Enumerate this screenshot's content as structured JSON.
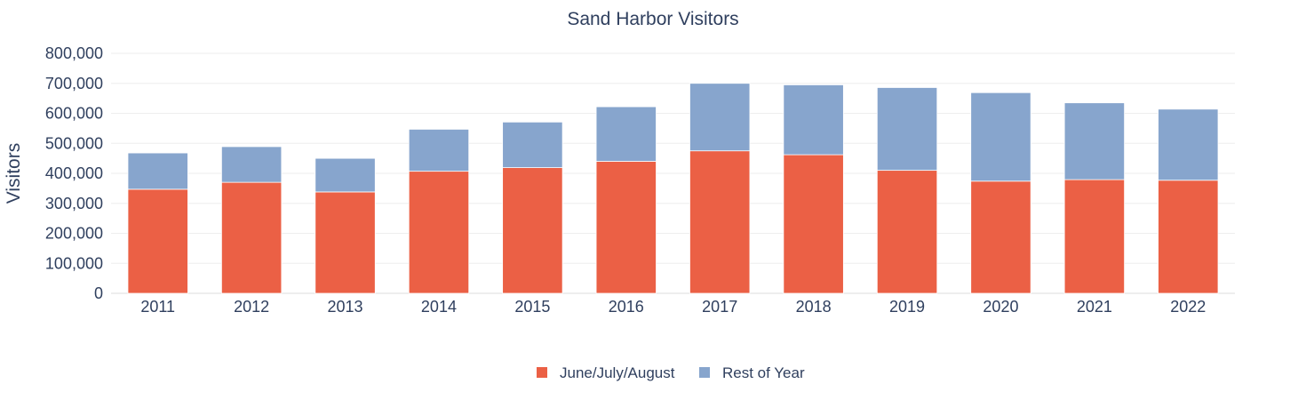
{
  "chart_data": {
    "type": "bar",
    "stacked": true,
    "title": "Sand Harbor Visitors",
    "xlabel": "",
    "ylabel": "Visitors",
    "categories": [
      "2011",
      "2012",
      "2013",
      "2014",
      "2015",
      "2016",
      "2017",
      "2018",
      "2019",
      "2020",
      "2021",
      "2022"
    ],
    "series": [
      {
        "name": "June/July/August",
        "color": "#eb6045",
        "values": [
          347000,
          370000,
          338000,
          407000,
          419000,
          440000,
          475000,
          462000,
          410000,
          374000,
          379000,
          377000
        ]
      },
      {
        "name": "Rest of Year",
        "color": "#87a5cd",
        "values": [
          121000,
          119000,
          112000,
          140000,
          152000,
          182000,
          225000,
          233000,
          276000,
          295000,
          256000,
          237000
        ]
      }
    ],
    "ylim": [
      0,
      800000
    ],
    "yticks": [
      0,
      100000,
      200000,
      300000,
      400000,
      500000,
      600000,
      700000,
      800000
    ],
    "ytick_labels": [
      "0",
      "100,000",
      "200,000",
      "300,000",
      "400,000",
      "500,000",
      "600,000",
      "700,000",
      "800,000"
    ],
    "grid": true,
    "legend_position": "bottom-center"
  }
}
